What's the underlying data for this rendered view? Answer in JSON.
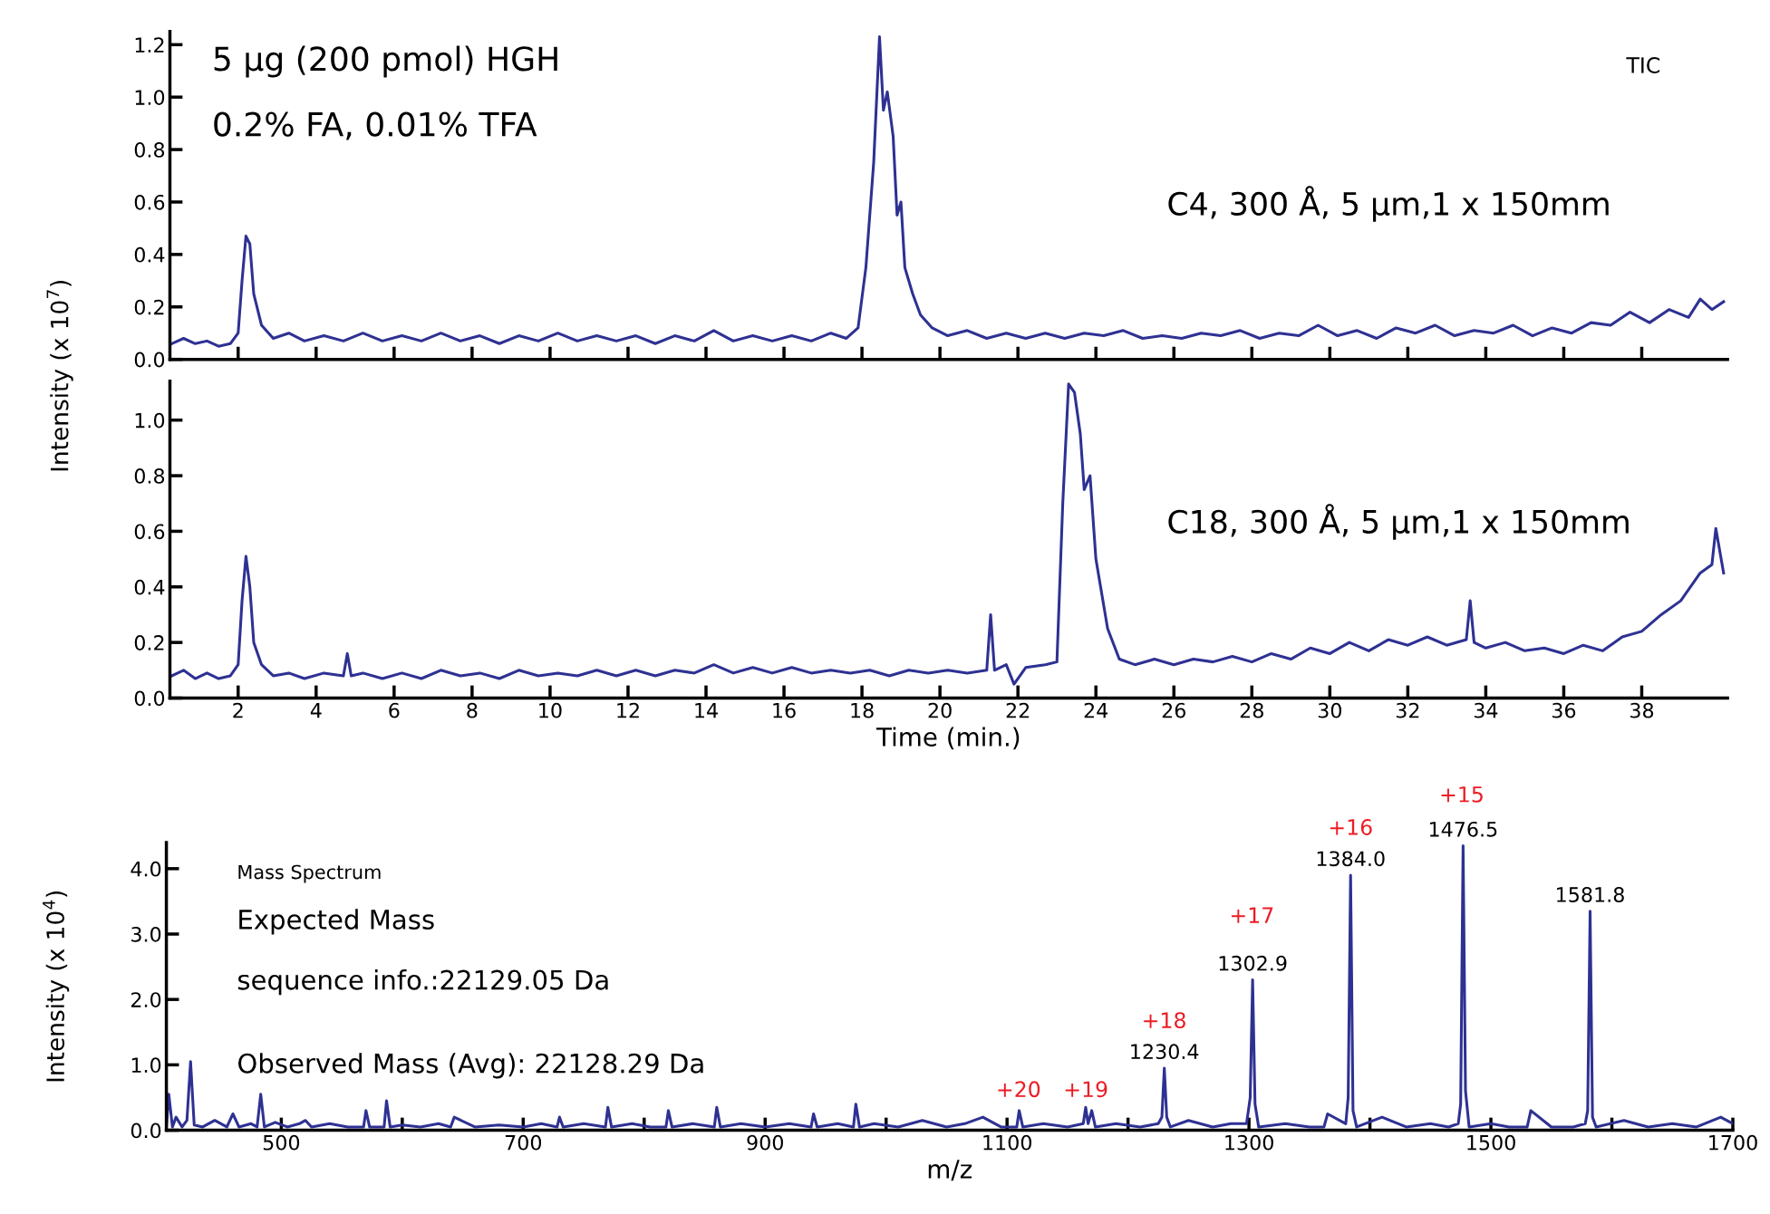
{
  "chart_data": [
    {
      "type": "line",
      "ylabel": "Intensity (x 10$^{7}$)",
      "tick_labels": "y",
      "grid": false,
      "legend": false,
      "marker": "none",
      "line_style": "solid",
      "xlim": [
        0.25,
        40.2
      ],
      "ylim": [
        0,
        1.25
      ],
      "xticks": [
        2,
        4,
        6,
        8,
        10,
        12,
        14,
        16,
        18,
        20,
        22,
        24,
        26,
        28,
        30,
        32,
        34,
        36,
        38
      ],
      "yticks": [
        {
          "value": 0,
          "label": "0.0"
        },
        {
          "value": 0.2,
          "label": "0.2"
        },
        {
          "value": 0.4,
          "label": "0.4"
        },
        {
          "value": 0.6,
          "label": "0.6"
        },
        {
          "value": 0.8,
          "label": "0.8"
        },
        {
          "value": 1.0,
          "label": "1.0"
        },
        {
          "value": 1.2,
          "label": "1.2"
        }
      ],
      "annotations": [
        "5 µg (200 pmol) HGH",
        "0.2% FA, 0.01% TFA",
        "TIC",
        "C4, 300 Å, 5 µm,1 x 150mm"
      ],
      "series": [
        {
          "color": "#2e3192",
          "x": [
            0.3,
            0.6,
            0.9,
            1.2,
            1.5,
            1.8,
            2.0,
            2.1,
            2.2,
            2.3,
            2.4,
            2.6,
            2.9,
            3.3,
            3.7,
            4.2,
            4.7,
            5.2,
            5.7,
            6.2,
            6.7,
            7.2,
            7.7,
            8.2,
            8.7,
            9.2,
            9.7,
            10.2,
            10.7,
            11.2,
            11.7,
            12.2,
            12.7,
            13.2,
            13.7,
            14.2,
            14.7,
            15.2,
            15.7,
            16.2,
            16.7,
            17.2,
            17.6,
            17.9,
            18.1,
            18.3,
            18.45,
            18.55,
            18.65,
            18.8,
            18.9,
            19.0,
            19.1,
            19.3,
            19.5,
            19.8,
            20.2,
            20.7,
            21.2,
            21.7,
            22.2,
            22.7,
            23.2,
            23.7,
            24.2,
            24.7,
            25.2,
            25.7,
            26.2,
            26.7,
            27.2,
            27.7,
            28.2,
            28.7,
            29.2,
            29.7,
            30.2,
            30.7,
            31.2,
            31.7,
            32.2,
            32.7,
            33.2,
            33.7,
            34.2,
            34.7,
            35.2,
            35.7,
            36.2,
            36.7,
            37.2,
            37.7,
            38.2,
            38.7,
            39.2,
            39.5,
            39.8,
            40.1
          ],
          "values": [
            0.06,
            0.08,
            0.06,
            0.07,
            0.05,
            0.06,
            0.1,
            0.3,
            0.47,
            0.44,
            0.25,
            0.13,
            0.08,
            0.1,
            0.07,
            0.09,
            0.07,
            0.1,
            0.07,
            0.09,
            0.07,
            0.1,
            0.07,
            0.09,
            0.06,
            0.09,
            0.07,
            0.1,
            0.07,
            0.09,
            0.07,
            0.09,
            0.06,
            0.09,
            0.07,
            0.11,
            0.07,
            0.09,
            0.07,
            0.09,
            0.07,
            0.1,
            0.08,
            0.12,
            0.35,
            0.75,
            1.23,
            0.95,
            1.02,
            0.85,
            0.55,
            0.6,
            0.35,
            0.25,
            0.17,
            0.12,
            0.09,
            0.11,
            0.08,
            0.1,
            0.08,
            0.1,
            0.08,
            0.1,
            0.09,
            0.11,
            0.08,
            0.09,
            0.08,
            0.1,
            0.09,
            0.11,
            0.08,
            0.1,
            0.09,
            0.13,
            0.09,
            0.11,
            0.08,
            0.12,
            0.1,
            0.13,
            0.09,
            0.11,
            0.1,
            0.13,
            0.09,
            0.12,
            0.1,
            0.14,
            0.13,
            0.18,
            0.14,
            0.19,
            0.16,
            0.23,
            0.19,
            0.22
          ]
        }
      ]
    },
    {
      "type": "line",
      "xlabel": "Time (min.)",
      "grid": false,
      "legend": false,
      "marker": "none",
      "line_style": "solid",
      "xlim": [
        0.25,
        40.2
      ],
      "ylim": [
        0,
        1.14
      ],
      "xticks": [
        2,
        4,
        6,
        8,
        10,
        12,
        14,
        16,
        18,
        20,
        22,
        24,
        26,
        28,
        30,
        32,
        34,
        36,
        38
      ],
      "yticks": [
        {
          "value": 0,
          "label": "0.0"
        },
        {
          "value": 0.2,
          "label": "0.2"
        },
        {
          "value": 0.4,
          "label": "0.4"
        },
        {
          "value": 0.6,
          "label": "0.6"
        },
        {
          "value": 0.8,
          "label": "0.8"
        },
        {
          "value": 1.0,
          "label": "1.0"
        }
      ],
      "annotations": [
        "C18, 300 Å, 5 µm,1 x 150mm"
      ],
      "series": [
        {
          "color": "#2e3192",
          "x": [
            0.3,
            0.6,
            0.9,
            1.2,
            1.5,
            1.8,
            2.0,
            2.1,
            2.2,
            2.3,
            2.4,
            2.6,
            2.9,
            3.3,
            3.7,
            4.2,
            4.7,
            4.8,
            4.9,
            5.2,
            5.7,
            6.2,
            6.7,
            7.2,
            7.7,
            8.2,
            8.7,
            9.2,
            9.7,
            10.2,
            10.7,
            11.2,
            11.7,
            12.2,
            12.7,
            13.2,
            13.7,
            14.2,
            14.7,
            15.2,
            15.7,
            16.2,
            16.7,
            17.2,
            17.7,
            18.2,
            18.7,
            19.2,
            19.7,
            20.2,
            20.7,
            21.2,
            21.3,
            21.4,
            21.7,
            21.9,
            22.2,
            22.7,
            23.0,
            23.15,
            23.3,
            23.45,
            23.6,
            23.7,
            23.85,
            24.0,
            24.3,
            24.6,
            25.0,
            25.5,
            26.0,
            26.5,
            27.0,
            27.5,
            28.0,
            28.5,
            29.0,
            29.5,
            30.0,
            30.5,
            31.0,
            31.5,
            32.0,
            32.5,
            33.0,
            33.5,
            33.6,
            33.7,
            34.0,
            34.5,
            35.0,
            35.5,
            36.0,
            36.5,
            37.0,
            37.5,
            38.0,
            38.5,
            39.0,
            39.5,
            39.8,
            39.9,
            40.1
          ],
          "values": [
            0.08,
            0.1,
            0.07,
            0.09,
            0.07,
            0.08,
            0.12,
            0.35,
            0.51,
            0.4,
            0.2,
            0.12,
            0.08,
            0.09,
            0.07,
            0.09,
            0.08,
            0.16,
            0.08,
            0.09,
            0.07,
            0.09,
            0.07,
            0.1,
            0.08,
            0.09,
            0.07,
            0.1,
            0.08,
            0.09,
            0.08,
            0.1,
            0.08,
            0.1,
            0.08,
            0.1,
            0.09,
            0.12,
            0.09,
            0.11,
            0.09,
            0.11,
            0.09,
            0.1,
            0.09,
            0.1,
            0.08,
            0.1,
            0.09,
            0.1,
            0.09,
            0.1,
            0.3,
            0.1,
            0.12,
            0.05,
            0.11,
            0.12,
            0.13,
            0.7,
            1.13,
            1.1,
            0.95,
            0.75,
            0.8,
            0.5,
            0.25,
            0.14,
            0.12,
            0.14,
            0.12,
            0.14,
            0.13,
            0.15,
            0.13,
            0.16,
            0.14,
            0.18,
            0.16,
            0.2,
            0.17,
            0.21,
            0.19,
            0.22,
            0.19,
            0.21,
            0.35,
            0.2,
            0.18,
            0.2,
            0.17,
            0.18,
            0.16,
            0.19,
            0.17,
            0.22,
            0.24,
            0.3,
            0.35,
            0.45,
            0.48,
            0.61,
            0.45
          ]
        }
      ]
    },
    {
      "type": "line",
      "xlabel": "m/z",
      "ylabel": "Intensity (x 10$^{4}$)",
      "grid": false,
      "legend": false,
      "marker": "none",
      "line_style": "solid",
      "xlim": [
        405,
        1700
      ],
      "ylim": [
        0,
        4.4
      ],
      "xticks": [
        500,
        {
          "value": 600,
          "label": null
        },
        700,
        {
          "value": 800,
          "label": null
        },
        900,
        {
          "value": 1000,
          "label": null
        },
        1100,
        {
          "value": 1200,
          "label": null
        },
        1300,
        {
          "value": 1400,
          "label": null
        },
        1500,
        {
          "value": 1600,
          "label": null
        },
        1700
      ],
      "yticks": [
        {
          "value": 0,
          "label": "0.0"
        },
        {
          "value": 1,
          "label": "1.0"
        },
        {
          "value": 2,
          "label": "2.0"
        },
        {
          "value": 3,
          "label": "3.0"
        },
        {
          "value": 4,
          "label": "4.0"
        }
      ],
      "annotations": [
        "Mass Spectrum",
        "Expected Mass",
        "sequence info.:22129.05 Da",
        "Observed Mass (Avg): 22128.29 Da",
        "+15",
        "+16",
        "+17",
        "+18",
        "+19",
        "+20",
        {
          "text": "1230.4",
          "x": 1230,
          "y": 0.95
        },
        {
          "text": "1302.9",
          "x": 1303,
          "y": 2.3
        },
        {
          "text": "1384.0",
          "x": 1384,
          "y": 3.9
        },
        {
          "text": "1476.5",
          "x": 1477,
          "y": 4.35
        },
        {
          "text": "1581.8",
          "x": 1582,
          "y": 3.35
        }
      ],
      "series": [
        {
          "color": "#2e3192",
          "x": [
            405,
            407,
            410,
            413,
            418,
            422,
            425,
            428,
            435,
            445,
            455,
            460,
            465,
            475,
            480,
            483,
            486,
            495,
            505,
            515,
            520,
            525,
            540,
            555,
            568,
            570,
            573,
            585,
            587,
            590,
            600,
            615,
            630,
            640,
            643,
            660,
            680,
            700,
            715,
            728,
            730,
            733,
            750,
            768,
            770,
            773,
            790,
            805,
            818,
            820,
            823,
            840,
            858,
            860,
            863,
            880,
            900,
            920,
            938,
            940,
            943,
            960,
            973,
            975,
            978,
            990,
            1010,
            1030,
            1050,
            1065,
            1080,
            1095,
            1108,
            1110,
            1113,
            1130,
            1150,
            1163,
            1165,
            1167,
            1170,
            1173,
            1190,
            1210,
            1225,
            1228,
            1230,
            1232,
            1235,
            1250,
            1270,
            1285,
            1298,
            1301,
            1303,
            1305,
            1308,
            1330,
            1350,
            1362,
            1365,
            1380,
            1382,
            1384,
            1386,
            1389,
            1410,
            1430,
            1450,
            1465,
            1473,
            1475,
            1477,
            1479,
            1482,
            1500,
            1515,
            1530,
            1533,
            1550,
            1568,
            1578,
            1580,
            1582,
            1584,
            1587,
            1610,
            1630,
            1650,
            1670,
            1690,
            1700
          ],
          "values": [
            0.05,
            0.55,
            0.05,
            0.2,
            0.05,
            0.15,
            1.05,
            0.08,
            0.05,
            0.15,
            0.05,
            0.25,
            0.05,
            0.1,
            0.05,
            0.55,
            0.05,
            0.12,
            0.05,
            0.1,
            0.15,
            0.05,
            0.1,
            0.05,
            0.05,
            0.3,
            0.05,
            0.05,
            0.45,
            0.05,
            0.08,
            0.05,
            0.1,
            0.05,
            0.2,
            0.05,
            0.08,
            0.05,
            0.1,
            0.05,
            0.2,
            0.05,
            0.1,
            0.05,
            0.35,
            0.05,
            0.1,
            0.05,
            0.05,
            0.3,
            0.05,
            0.1,
            0.05,
            0.35,
            0.05,
            0.1,
            0.05,
            0.1,
            0.05,
            0.25,
            0.05,
            0.1,
            0.05,
            0.4,
            0.05,
            0.1,
            0.05,
            0.15,
            0.05,
            0.1,
            0.2,
            0.05,
            0.05,
            0.3,
            0.05,
            0.1,
            0.05,
            0.1,
            0.35,
            0.1,
            0.3,
            0.05,
            0.1,
            0.05,
            0.1,
            0.2,
            0.95,
            0.2,
            0.05,
            0.15,
            0.05,
            0.1,
            0.1,
            0.5,
            2.3,
            0.4,
            0.05,
            0.1,
            0.05,
            0.05,
            0.25,
            0.1,
            0.5,
            3.9,
            0.3,
            0.05,
            0.2,
            0.05,
            0.1,
            0.05,
            0.1,
            0.4,
            4.35,
            0.6,
            0.05,
            0.1,
            0.05,
            0.05,
            0.3,
            0.05,
            0.05,
            0.1,
            0.3,
            3.35,
            0.2,
            0.05,
            0.15,
            0.05,
            0.1,
            0.05,
            0.2,
            0.1
          ]
        }
      ]
    }
  ]
}
